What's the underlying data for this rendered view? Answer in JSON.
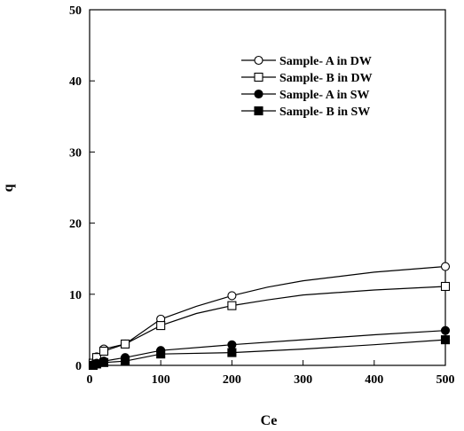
{
  "chart_data": {
    "type": "line",
    "xlabel": "Ce",
    "ylabel": "q",
    "xlim": [
      0,
      500
    ],
    "ylim": [
      0,
      50
    ],
    "xticks": [
      0,
      100,
      200,
      300,
      400,
      500
    ],
    "yticks": [
      0,
      10,
      20,
      30,
      40,
      50
    ],
    "grid": false,
    "legend_position": "top-right",
    "series": [
      {
        "name": "Sample- A  in DW",
        "marker": "open-circle",
        "points": [
          [
            5,
            0.3
          ],
          [
            10,
            1.2
          ],
          [
            20,
            2.3
          ],
          [
            50,
            3.0
          ],
          [
            100,
            6.5
          ],
          [
            200,
            9.8
          ],
          [
            500,
            13.9
          ]
        ],
        "curve": [
          [
            5,
            0.3
          ],
          [
            10,
            1.2
          ],
          [
            20,
            2.3
          ],
          [
            50,
            3.0
          ],
          [
            100,
            6.5
          ],
          [
            150,
            8.3
          ],
          [
            200,
            9.8
          ],
          [
            250,
            11.0
          ],
          [
            300,
            11.9
          ],
          [
            400,
            13.1
          ],
          [
            500,
            13.9
          ]
        ]
      },
      {
        "name": "Sample- B in DW",
        "marker": "open-square",
        "points": [
          [
            5,
            0.3
          ],
          [
            10,
            1.1
          ],
          [
            20,
            2.0
          ],
          [
            50,
            3.0
          ],
          [
            100,
            5.6
          ],
          [
            200,
            8.4
          ],
          [
            500,
            11.1
          ]
        ],
        "curve": [
          [
            5,
            0.3
          ],
          [
            10,
            1.1
          ],
          [
            20,
            2.0
          ],
          [
            50,
            3.0
          ],
          [
            100,
            5.6
          ],
          [
            150,
            7.3
          ],
          [
            200,
            8.4
          ],
          [
            250,
            9.2
          ],
          [
            300,
            9.9
          ],
          [
            400,
            10.6
          ],
          [
            500,
            11.1
          ]
        ]
      },
      {
        "name": "Sample- A  in SW",
        "marker": "filled-circle",
        "points": [
          [
            5,
            0.1
          ],
          [
            10,
            0.3
          ],
          [
            20,
            0.6
          ],
          [
            50,
            1.1
          ],
          [
            100,
            2.1
          ],
          [
            200,
            2.9
          ],
          [
            500,
            4.9
          ]
        ],
        "curve": [
          [
            5,
            0.1
          ],
          [
            10,
            0.3
          ],
          [
            20,
            0.6
          ],
          [
            50,
            1.1
          ],
          [
            100,
            2.1
          ],
          [
            200,
            2.9
          ],
          [
            300,
            3.6
          ],
          [
            400,
            4.3
          ],
          [
            500,
            4.9
          ]
        ]
      },
      {
        "name": "Sample- B in SW",
        "marker": "filled-square",
        "points": [
          [
            5,
            0.0
          ],
          [
            10,
            0.2
          ],
          [
            20,
            0.4
          ],
          [
            50,
            0.6
          ],
          [
            100,
            1.6
          ],
          [
            200,
            1.8
          ],
          [
            500,
            3.6
          ]
        ],
        "curve": [
          [
            5,
            0.0
          ],
          [
            10,
            0.2
          ],
          [
            20,
            0.4
          ],
          [
            50,
            0.6
          ],
          [
            100,
            1.6
          ],
          [
            200,
            1.8
          ],
          [
            300,
            2.3
          ],
          [
            400,
            2.9
          ],
          [
            500,
            3.6
          ]
        ]
      }
    ],
    "colors": {
      "line": "#000000",
      "background": "#ffffff"
    }
  }
}
